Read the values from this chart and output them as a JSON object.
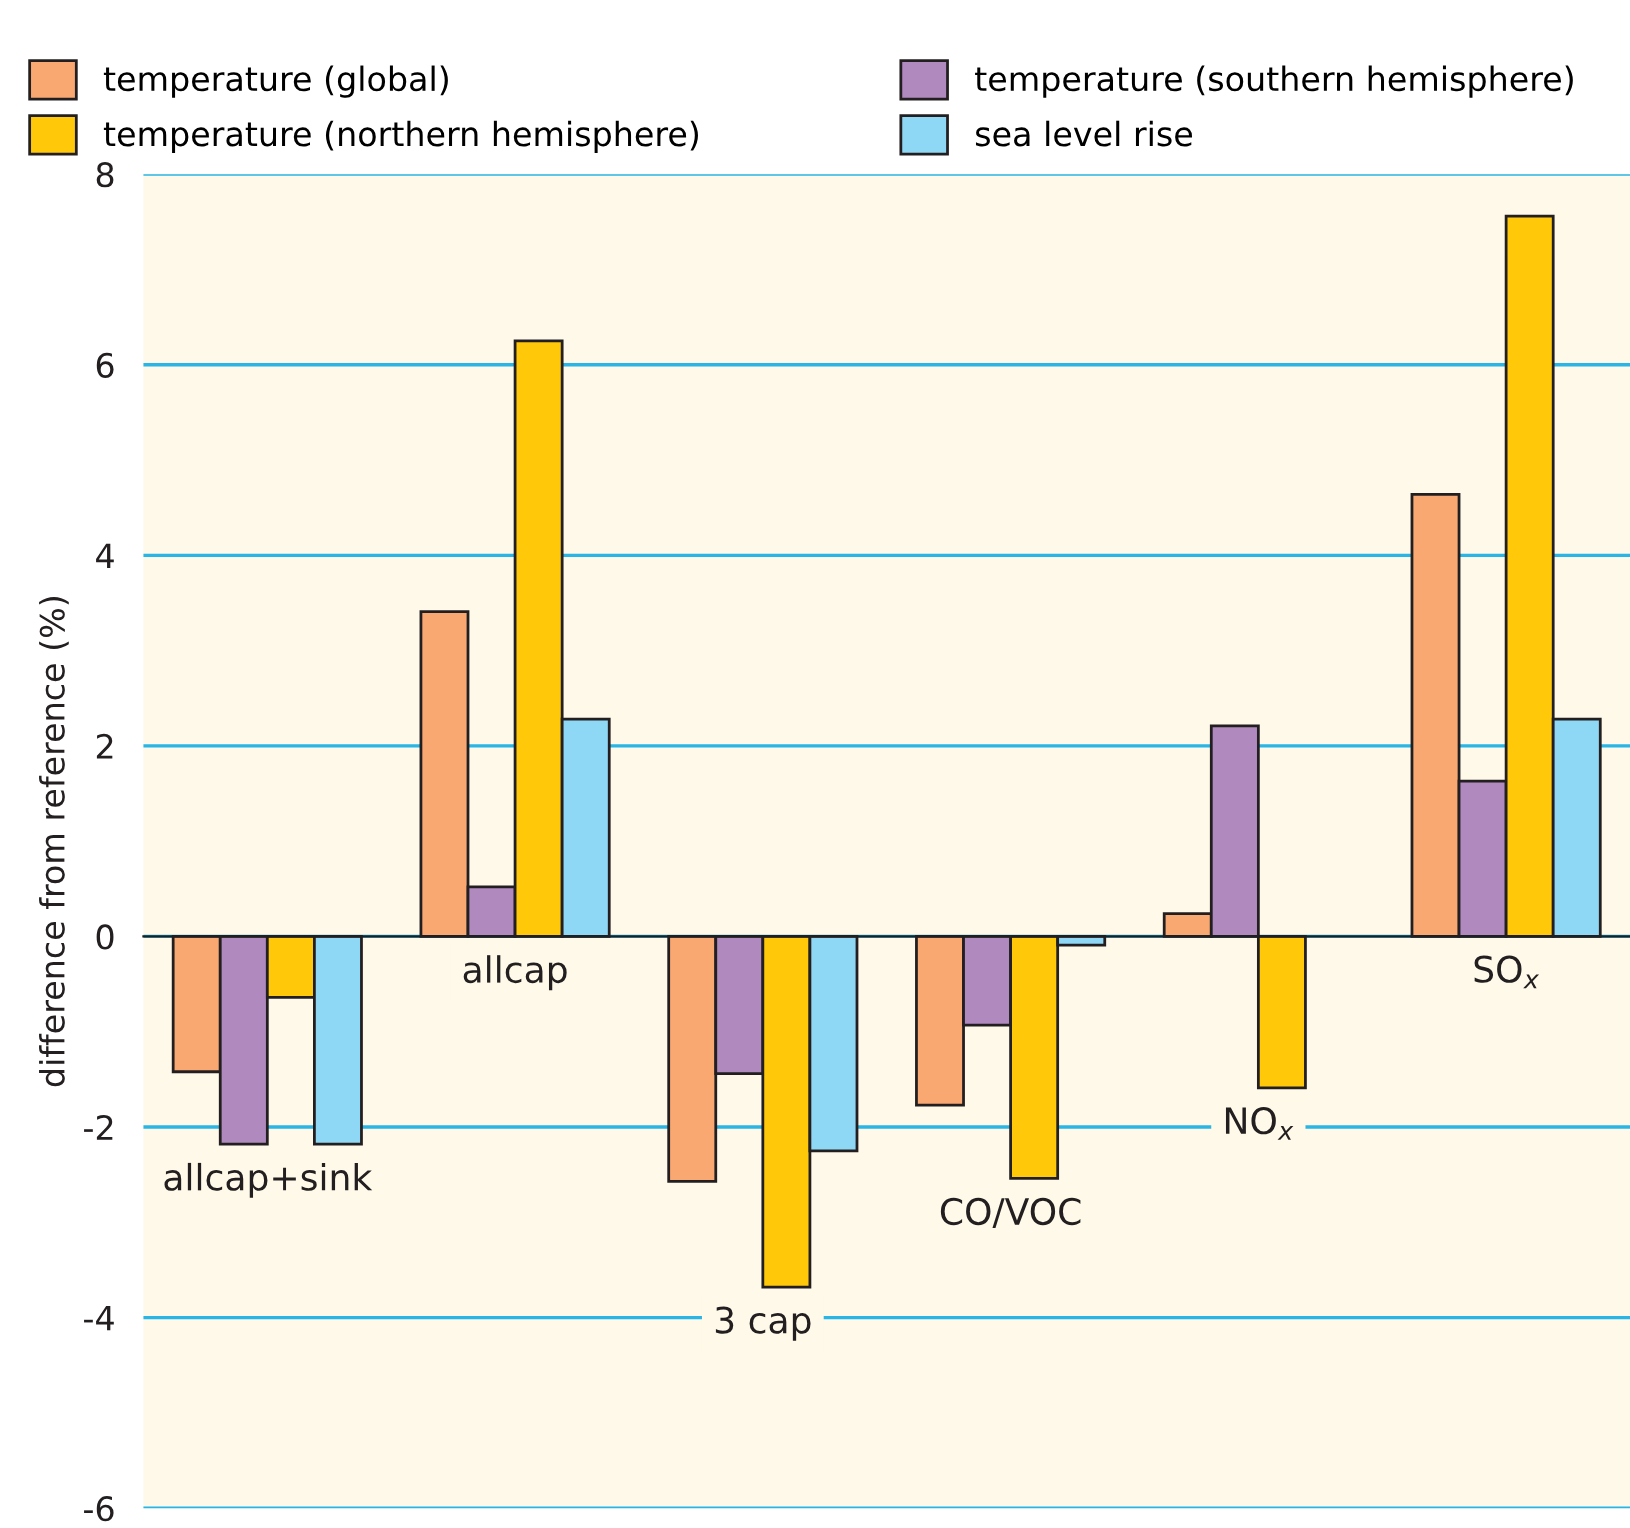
{
  "chart_data": {
    "type": "bar",
    "ylabel": "difference from reference (%)",
    "categories": [
      "allcap+sink",
      "allcap",
      "3 cap",
      "CO/VOC",
      "NO$_{x}$",
      "SO$_{x}$"
    ],
    "series": [
      {
        "name": "temperature (global)",
        "color": "#f8a870",
        "values": [
          -1.42,
          3.41,
          -2.57,
          -1.77,
          0.24,
          4.64
        ]
      },
      {
        "name": "temperature (southern hemisphere)",
        "color": "#b08abf",
        "values": [
          -2.18,
          0.52,
          -1.44,
          -0.93,
          2.21,
          1.63
        ]
      },
      {
        "name": "temperature (northern hemisphere)",
        "color": "#ffc90a",
        "values": [
          -0.64,
          6.25,
          -3.68,
          -2.54,
          -1.59,
          7.56
        ]
      },
      {
        "name": "sea level rise",
        "color": "#8fd8f5",
        "values": [
          -2.18,
          2.28,
          -2.25,
          -0.09,
          null,
          2.28
        ]
      }
    ],
    "ylim": [
      -6,
      8
    ],
    "yticks": [
      -6,
      -4,
      -2,
      0,
      2,
      4,
      6,
      8
    ],
    "grid": "y",
    "legend": "top"
  }
}
